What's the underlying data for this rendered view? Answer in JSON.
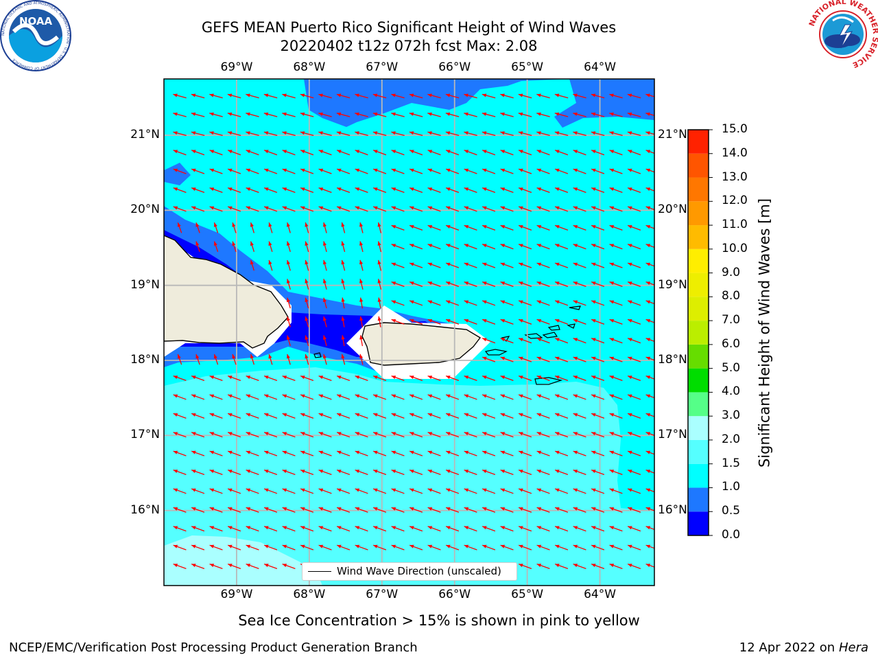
{
  "title": {
    "line1": "GEFS MEAN Puerto Rico Significant Height of Wind Waves",
    "line2": "20220402 t12z 072h fcst   Max: 2.08"
  },
  "map": {
    "lon_range": [
      -70.0,
      -63.25
    ],
    "lat_range": [
      15.0,
      21.75
    ],
    "lon_ticks": [
      {
        "value": -69,
        "label": "69°W"
      },
      {
        "value": -68,
        "label": "68°W"
      },
      {
        "value": -67,
        "label": "67°W"
      },
      {
        "value": -66,
        "label": "66°W"
      },
      {
        "value": -65,
        "label": "65°W"
      },
      {
        "value": -64,
        "label": "64°W"
      }
    ],
    "lat_ticks": [
      {
        "value": 21,
        "label": "21°N"
      },
      {
        "value": 20,
        "label": "20°N"
      },
      {
        "value": 19,
        "label": "19°N"
      },
      {
        "value": 18,
        "label": "18°N"
      },
      {
        "value": 17,
        "label": "17°N"
      },
      {
        "value": 16,
        "label": "16°N"
      }
    ],
    "gridlines": true,
    "arrow_color": "#ff0000",
    "land_color": "#efecdc",
    "legend": {
      "label": "Wind Wave Direction (unscaled)",
      "placement": "lower-center"
    }
  },
  "colorbar": {
    "label": "Significant Height of Wind Waves [m]",
    "levels": [
      {
        "label": "0.0",
        "color": "#0000ff"
      },
      {
        "label": "0.5",
        "color": "#1e78ff"
      },
      {
        "label": "1.0",
        "color": "#00ffff"
      },
      {
        "label": "1.5",
        "color": "#55ffff"
      },
      {
        "label": "2.0",
        "color": "#aaffff"
      },
      {
        "label": "3.0",
        "color": "#55ff88"
      },
      {
        "label": "4.0",
        "color": "#00dd00"
      },
      {
        "label": "5.0",
        "color": "#66dd00"
      },
      {
        "label": "6.0",
        "color": "#bbee00"
      },
      {
        "label": "7.0",
        "color": "#ddee00"
      },
      {
        "label": "8.0",
        "color": "#eeee00"
      },
      {
        "label": "9.0",
        "color": "#ffee00"
      },
      {
        "label": "10.0",
        "color": "#ffbb00"
      },
      {
        "label": "11.0",
        "color": "#ff9900"
      },
      {
        "label": "12.0",
        "color": "#ff7700"
      },
      {
        "label": "13.0",
        "color": "#ff5500"
      },
      {
        "label": "14.0",
        "color": "#ff2200"
      },
      {
        "label": "15.0",
        "color": null
      }
    ]
  },
  "notes": {
    "ice": "Sea Ice Concentration > 15% is shown in pink to yellow",
    "footer_left": "NCEP/EMC/Verification Post Processing Product Generation Branch",
    "footer_right_date": "12 Apr 2022 on ",
    "footer_right_host": "Hera"
  },
  "logos": {
    "noaa": {
      "text": "NOAA",
      "ring_text": "NATIONAL OCEANIC AND ATMOSPHERIC ADMINISTRATION · U.S. DEPARTMENT OF COMMERCE"
    },
    "nws": {
      "ring_text": "NATIONAL WEATHER SERVICE"
    }
  }
}
